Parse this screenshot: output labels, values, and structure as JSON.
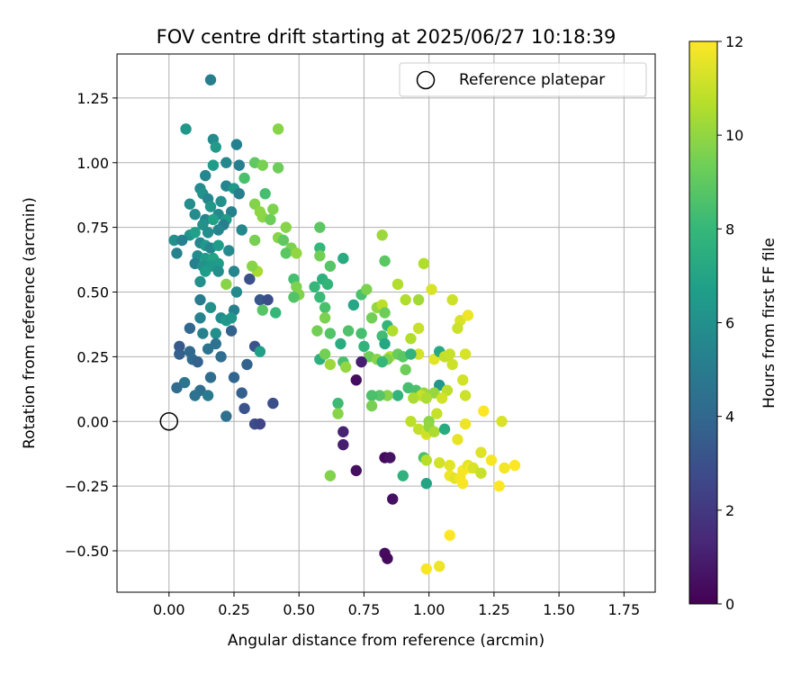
{
  "chart_data": {
    "type": "scatter",
    "title": "FOV centre drift starting at 2025/06/27 10:18:39",
    "xlabel": "Angular distance from reference (arcmin)",
    "ylabel": "Rotation from reference (arcmin)",
    "xlim": [
      -0.2,
      1.87
    ],
    "ylim": [
      -0.66,
      1.42
    ],
    "xticks": [
      0.0,
      0.25,
      0.5,
      0.75,
      1.0,
      1.25,
      1.5,
      1.75
    ],
    "xtick_labels": [
      "0.00",
      "0.25",
      "0.50",
      "0.75",
      "1.00",
      "1.25",
      "1.50",
      "1.75"
    ],
    "yticks": [
      -0.5,
      -0.25,
      0.0,
      0.25,
      0.5,
      0.75,
      1.0,
      1.25
    ],
    "ytick_labels": [
      "−0.50",
      "−0.25",
      "0.00",
      "0.25",
      "0.50",
      "0.75",
      "1.00",
      "1.25"
    ],
    "grid": true,
    "legend": {
      "placement": "top-right",
      "entries": [
        "Reference platepar"
      ]
    },
    "reference_point": {
      "x": 0.0,
      "y": 0.0,
      "marker": "open-circle"
    },
    "colorbar": {
      "label": "Hours from first FF file",
      "range": [
        0,
        12
      ],
      "ticks": [
        0,
        2,
        4,
        6,
        8,
        10,
        12
      ],
      "tick_labels": [
        "0",
        "2",
        "4",
        "6",
        "8",
        "10",
        "12"
      ],
      "colormap": "viridis",
      "colors": [
        "#440154",
        "#482878",
        "#3e4989",
        "#31688e",
        "#26828e",
        "#1f9e89",
        "#35b779",
        "#6ece58",
        "#b5de2b",
        "#fde725"
      ]
    },
    "points": [
      [
        0.16,
        1.32,
        5.2
      ],
      [
        0.065,
        1.13,
        6.3
      ],
      [
        0.17,
        1.09,
        5.8
      ],
      [
        0.18,
        1.06,
        6.5
      ],
      [
        0.26,
        1.07,
        5.3
      ],
      [
        0.14,
        0.95,
        5.5
      ],
      [
        0.12,
        0.9,
        5.7
      ],
      [
        0.17,
        0.99,
        6.6
      ],
      [
        0.22,
        1.0,
        5.6
      ],
      [
        0.27,
        0.99,
        5.2
      ],
      [
        0.29,
        0.94,
        8.5
      ],
      [
        0.22,
        0.91,
        5.5
      ],
      [
        0.25,
        0.9,
        6.4
      ],
      [
        0.27,
        0.88,
        5.2
      ],
      [
        0.13,
        0.88,
        6.1
      ],
      [
        0.08,
        0.84,
        5.9
      ],
      [
        0.15,
        0.86,
        5.5
      ],
      [
        0.2,
        0.85,
        6.0
      ],
      [
        0.16,
        0.83,
        6.3
      ],
      [
        0.24,
        0.81,
        5.3
      ],
      [
        0.1,
        0.8,
        5.8
      ],
      [
        0.19,
        0.8,
        5.7
      ],
      [
        0.14,
        0.78,
        5.4
      ],
      [
        0.17,
        0.78,
        6.8
      ],
      [
        0.22,
        0.78,
        6.6
      ],
      [
        0.21,
        0.76,
        5.2
      ],
      [
        0.13,
        0.76,
        6.1
      ],
      [
        0.19,
        0.74,
        5.5
      ],
      [
        0.28,
        0.74,
        5.6
      ],
      [
        0.15,
        0.73,
        5.9
      ],
      [
        0.08,
        0.72,
        6.2
      ],
      [
        0.1,
        0.73,
        6.7
      ],
      [
        0.02,
        0.7,
        6.0
      ],
      [
        0.05,
        0.7,
        5.3
      ],
      [
        0.12,
        0.69,
        5.5
      ],
      [
        0.14,
        0.68,
        6.4
      ],
      [
        0.16,
        0.67,
        5.5
      ],
      [
        0.19,
        0.68,
        6.6
      ],
      [
        0.23,
        0.66,
        5.7
      ],
      [
        0.03,
        0.65,
        5.4
      ],
      [
        0.11,
        0.64,
        5.8
      ],
      [
        0.14,
        0.63,
        6.5
      ],
      [
        0.17,
        0.63,
        6.9
      ],
      [
        0.19,
        0.61,
        6.6
      ],
      [
        0.1,
        0.61,
        5.3
      ],
      [
        0.13,
        0.6,
        6.1
      ],
      [
        0.16,
        0.6,
        6.4
      ],
      [
        0.14,
        0.58,
        6.6
      ],
      [
        0.19,
        0.58,
        5.9
      ],
      [
        0.25,
        0.58,
        5.5
      ],
      [
        0.12,
        0.54,
        6.0
      ],
      [
        0.22,
        0.53,
        9.8
      ],
      [
        0.31,
        0.55,
        3.0
      ],
      [
        0.26,
        0.5,
        5.7
      ],
      [
        0.12,
        0.47,
        5.0
      ],
      [
        0.16,
        0.44,
        6.0
      ],
      [
        0.25,
        0.43,
        5.2
      ],
      [
        0.2,
        0.4,
        5.8
      ],
      [
        0.12,
        0.4,
        5.4
      ],
      [
        0.22,
        0.39,
        6.4
      ],
      [
        0.24,
        0.4,
        6.3
      ],
      [
        0.08,
        0.36,
        4.0
      ],
      [
        0.13,
        0.34,
        5.3
      ],
      [
        0.18,
        0.34,
        5.9
      ],
      [
        0.24,
        0.35,
        3.8
      ],
      [
        0.04,
        0.29,
        3.4
      ],
      [
        0.15,
        0.28,
        4.6
      ],
      [
        0.18,
        0.3,
        4.5
      ],
      [
        0.04,
        0.26,
        3.6
      ],
      [
        0.08,
        0.27,
        4.0
      ],
      [
        0.09,
        0.24,
        4.1
      ],
      [
        0.11,
        0.23,
        3.8
      ],
      [
        0.2,
        0.25,
        4.3
      ],
      [
        0.3,
        0.22,
        3.8
      ],
      [
        0.33,
        0.29,
        3.1
      ],
      [
        0.06,
        0.15,
        4.7
      ],
      [
        0.03,
        0.13,
        4.2
      ],
      [
        0.12,
        0.12,
        4.3
      ],
      [
        0.1,
        0.1,
        4.5
      ],
      [
        0.15,
        0.1,
        4.9
      ],
      [
        0.16,
        0.17,
        4.3
      ],
      [
        0.25,
        0.17,
        3.9
      ],
      [
        0.28,
        0.11,
        3.6
      ],
      [
        0.29,
        0.05,
        3.1
      ],
      [
        0.22,
        0.02,
        4.4
      ],
      [
        0.33,
        -0.01,
        2.8
      ],
      [
        0.35,
        -0.01,
        2.5
      ],
      [
        0.4,
        0.07,
        2.9
      ],
      [
        0.35,
        0.27,
        6.7
      ],
      [
        0.33,
        1.0,
        9.0
      ],
      [
        0.36,
        0.99,
        9.5
      ],
      [
        0.42,
        0.98,
        9.3
      ],
      [
        0.42,
        1.13,
        9.8
      ],
      [
        0.33,
        0.84,
        9.7
      ],
      [
        0.35,
        0.81,
        9.9
      ],
      [
        0.37,
        0.88,
        8.4
      ],
      [
        0.4,
        0.82,
        9.6
      ],
      [
        0.36,
        0.79,
        9.9
      ],
      [
        0.39,
        0.78,
        9.3
      ],
      [
        0.45,
        0.75,
        9.8
      ],
      [
        0.42,
        0.71,
        9.8
      ],
      [
        0.44,
        0.7,
        9.0
      ],
      [
        0.47,
        0.67,
        9.6
      ],
      [
        0.45,
        0.65,
        8.9
      ],
      [
        0.49,
        0.65,
        10.0
      ],
      [
        0.33,
        0.7,
        9.5
      ],
      [
        0.48,
        0.55,
        8.4
      ],
      [
        0.49,
        0.52,
        9.6
      ],
      [
        0.5,
        0.49,
        9.7
      ],
      [
        0.48,
        0.48,
        8.7
      ],
      [
        0.34,
        0.58,
        10.4
      ],
      [
        0.35,
        0.47,
        3.3
      ],
      [
        0.38,
        0.47,
        2.9
      ],
      [
        0.36,
        0.43,
        8.8
      ],
      [
        0.41,
        0.42,
        8.0
      ],
      [
        0.32,
        0.6,
        9.8
      ],
      [
        0.58,
        0.75,
        8.9
      ],
      [
        0.58,
        0.67,
        8.0
      ],
      [
        0.58,
        0.64,
        9.4
      ],
      [
        0.62,
        0.6,
        8.8
      ],
      [
        0.67,
        0.63,
        7.3
      ],
      [
        0.59,
        0.55,
        7.6
      ],
      [
        0.61,
        0.53,
        7.9
      ],
      [
        0.56,
        0.52,
        8.0
      ],
      [
        0.58,
        0.48,
        8.1
      ],
      [
        0.6,
        0.44,
        8.5
      ],
      [
        0.6,
        0.4,
        9.6
      ],
      [
        0.57,
        0.35,
        9.4
      ],
      [
        0.62,
        0.34,
        8.7
      ],
      [
        0.58,
        0.24,
        7.6
      ],
      [
        0.6,
        0.26,
        9.4
      ],
      [
        0.62,
        0.22,
        10.2
      ],
      [
        0.66,
        0.3,
        7.4
      ],
      [
        0.67,
        0.23,
        8.5
      ],
      [
        0.68,
        0.21,
        10.0
      ],
      [
        0.69,
        0.35,
        8.6
      ],
      [
        0.71,
        0.45,
        7.1
      ],
      [
        0.74,
        0.49,
        8.5
      ],
      [
        0.76,
        0.51,
        9.6
      ],
      [
        0.74,
        0.34,
        8.4
      ],
      [
        0.75,
        0.29,
        7.8
      ],
      [
        0.77,
        0.25,
        9.3
      ],
      [
        0.8,
        0.24,
        9.8
      ],
      [
        0.78,
        0.4,
        9.4
      ],
      [
        0.8,
        0.44,
        10.0
      ],
      [
        0.82,
        0.45,
        10.8
      ],
      [
        0.83,
        0.42,
        9.3
      ],
      [
        0.84,
        0.37,
        7.9
      ],
      [
        0.86,
        0.35,
        10.6
      ],
      [
        0.82,
        0.33,
        8.3
      ],
      [
        0.83,
        0.3,
        7.1
      ],
      [
        0.85,
        0.25,
        10.6
      ],
      [
        0.84,
        0.24,
        9.6
      ],
      [
        0.82,
        0.23,
        8.0
      ],
      [
        0.88,
        0.26,
        9.2
      ],
      [
        0.9,
        0.25,
        8.9
      ],
      [
        0.91,
        0.2,
        9.3
      ],
      [
        0.92,
        0.13,
        8.4
      ],
      [
        0.95,
        0.12,
        8.5
      ],
      [
        0.88,
        0.1,
        7.8
      ],
      [
        0.82,
        0.72,
        10.2
      ],
      [
        0.83,
        0.62,
        8.9
      ],
      [
        0.88,
        0.53,
        10.6
      ],
      [
        0.91,
        0.47,
        10.6
      ],
      [
        0.96,
        0.47,
        10.3
      ],
      [
        0.96,
        0.36,
        11.0
      ],
      [
        0.93,
        0.32,
        10.6
      ],
      [
        0.96,
        0.26,
        11.2
      ],
      [
        0.93,
        0.26,
        7.8
      ],
      [
        0.98,
        0.61,
        10.6
      ],
      [
        1.01,
        0.51,
        11.3
      ],
      [
        1.02,
        0.24,
        11.5
      ],
      [
        1.04,
        0.27,
        7.2
      ],
      [
        1.06,
        0.25,
        10.9
      ],
      [
        1.04,
        0.14,
        6.3
      ],
      [
        1.07,
        0.12,
        10.8
      ],
      [
        1.02,
        0.11,
        10.1
      ],
      [
        1.05,
        0.09,
        11.2
      ],
      [
        0.98,
        0.11,
        10.1
      ],
      [
        0.97,
        0.1,
        11.0
      ],
      [
        0.99,
        0.09,
        10.5
      ],
      [
        0.94,
        0.09,
        10.5
      ],
      [
        0.84,
        0.1,
        9.8
      ],
      [
        0.81,
        0.1,
        8.8
      ],
      [
        0.78,
        0.1,
        8.5
      ],
      [
        0.72,
        0.16,
        0.4
      ],
      [
        0.74,
        0.23,
        1.0
      ],
      [
        0.78,
        0.06,
        9.5
      ],
      [
        0.65,
        0.07,
        8.2
      ],
      [
        0.65,
        0.03,
        9.8
      ],
      [
        0.67,
        -0.04,
        1.1
      ],
      [
        0.67,
        -0.09,
        1.0
      ],
      [
        0.62,
        -0.21,
        9.7
      ],
      [
        0.72,
        -0.19,
        0.5
      ],
      [
        0.83,
        -0.14,
        0.3
      ],
      [
        0.85,
        -0.14,
        0.6
      ],
      [
        0.86,
        -0.3,
        0.5
      ],
      [
        0.83,
        -0.51,
        0.4
      ],
      [
        0.84,
        -0.53,
        0.3
      ],
      [
        0.93,
        0.0,
        10.8
      ],
      [
        0.96,
        -0.03,
        10.9
      ],
      [
        0.99,
        -0.05,
        11.4
      ],
      [
        0.99,
        -0.04,
        11.1
      ],
      [
        1.0,
        0.0,
        9.9
      ],
      [
        1.0,
        -0.02,
        10.0
      ],
      [
        1.02,
        -0.04,
        10.5
      ],
      [
        0.98,
        -0.14,
        8.5
      ],
      [
        0.99,
        -0.15,
        10.7
      ],
      [
        0.9,
        -0.21,
        7.7
      ],
      [
        0.99,
        -0.24,
        7.0
      ],
      [
        1.04,
        -0.16,
        11.2
      ],
      [
        1.08,
        -0.17,
        11.5
      ],
      [
        1.08,
        -0.21,
        11.7
      ],
      [
        1.1,
        -0.22,
        11.5
      ],
      [
        1.13,
        -0.19,
        11.9
      ],
      [
        1.12,
        -0.22,
        11.8
      ],
      [
        1.13,
        -0.24,
        11.9
      ],
      [
        1.15,
        -0.17,
        11.5
      ],
      [
        1.16,
        -0.18,
        11.9
      ],
      [
        1.17,
        -0.18,
        11.3
      ],
      [
        1.2,
        -0.2,
        11.0
      ],
      [
        1.2,
        -0.12,
        11.4
      ],
      [
        1.24,
        -0.15,
        11.9
      ],
      [
        1.29,
        -0.18,
        11.8
      ],
      [
        1.33,
        -0.17,
        12.0
      ],
      [
        1.27,
        -0.25,
        12.0
      ],
      [
        1.21,
        0.04,
        12.0
      ],
      [
        1.28,
        0.0,
        11.3
      ],
      [
        1.14,
        0.1,
        11.1
      ],
      [
        1.13,
        0.16,
        11.2
      ],
      [
        1.14,
        -0.01,
        11.7
      ],
      [
        1.11,
        -0.07,
        11.6
      ],
      [
        1.06,
        -0.03,
        7.3
      ],
      [
        1.03,
        0.03,
        11.0
      ],
      [
        1.09,
        0.47,
        11.1
      ],
      [
        1.12,
        0.39,
        11.3
      ],
      [
        1.15,
        0.41,
        11.7
      ],
      [
        1.11,
        0.36,
        11.1
      ],
      [
        1.14,
        0.26,
        11.3
      ],
      [
        1.09,
        0.22,
        11.1
      ],
      [
        1.08,
        0.26,
        11.0
      ],
      [
        0.99,
        -0.57,
        11.9
      ],
      [
        1.04,
        -0.56,
        11.7
      ],
      [
        1.08,
        -0.44,
        12.0
      ]
    ]
  }
}
